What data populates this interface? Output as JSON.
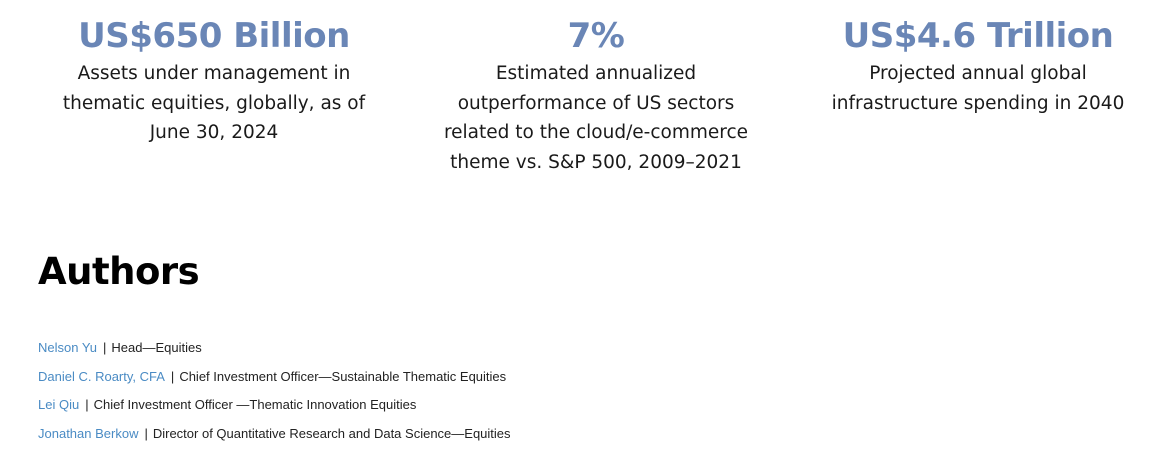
{
  "stats": [
    {
      "value": "US$650 Billion",
      "description": "Assets under management in thematic equities, globally, as of June 30, 2024"
    },
    {
      "value": "7%",
      "description": "Estimated annualized outperformance of US sectors related to the cloud/e-commerce theme vs. S&P 500, 2009–2021"
    },
    {
      "value": "US$4.6 Trillion",
      "description": "Projected annual global infrastructure spending in 2040"
    }
  ],
  "authors": {
    "heading": "Authors",
    "separator": "|",
    "items": [
      {
        "name": "Nelson Yu",
        "role": "Head—Equities"
      },
      {
        "name": "Daniel C. Roarty, CFA",
        "role": "Chief Investment Officer—Sustainable Thematic Equities"
      },
      {
        "name": "Lei Qiu",
        "role": "Chief Investment Officer —Thematic Innovation Equities"
      },
      {
        "name": "Jonathan Berkow",
        "role": "Director of Quantitative Research and Data Science—Equities"
      }
    ]
  },
  "colors": {
    "stat_value": "#6a86b6",
    "author_link": "#4a8bc4",
    "text": "#1a1a1a"
  }
}
